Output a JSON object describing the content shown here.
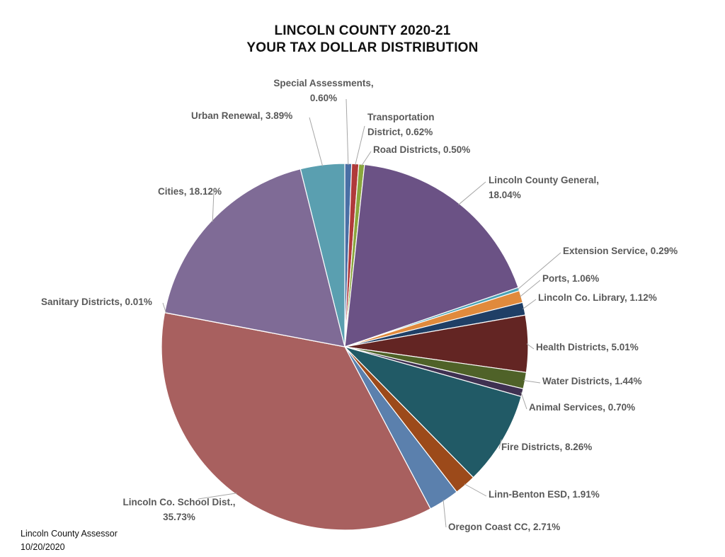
{
  "title_line1": "LINCOLN COUNTY 2020-21",
  "title_line2": "YOUR TAX DOLLAR DISTRIBUTION",
  "footer": {
    "line1": "Lincoln County Assessor",
    "line2": "10/20/2020"
  },
  "chart_data": {
    "type": "pie",
    "title": "LINCOLN COUNTY 2020-21 YOUR TAX DOLLAR DISTRIBUTION",
    "slices": [
      {
        "name": "Special Assessments",
        "value": 0.6,
        "label_lines": [
          "Special Assessments,",
          "0.60%"
        ],
        "color": "#4a6fa5"
      },
      {
        "name": "Transportation District",
        "value": 0.62,
        "label_lines": [
          "Transportation",
          "District, 0.62%"
        ],
        "color": "#b03a3a"
      },
      {
        "name": "Road Districts",
        "value": 0.5,
        "label_lines": [
          "Road Districts, 0.50%"
        ],
        "color": "#8aa63d"
      },
      {
        "name": "Lincoln County General",
        "value": 18.04,
        "label_lines": [
          "Lincoln County General,",
          "18.04%"
        ],
        "color": "#6b5285"
      },
      {
        "name": "Extension Service",
        "value": 0.29,
        "label_lines": [
          "Extension Service, 0.29%"
        ],
        "color": "#4aa3b5"
      },
      {
        "name": "Ports",
        "value": 1.06,
        "label_lines": [
          "Ports, 1.06%"
        ],
        "color": "#e08a3c"
      },
      {
        "name": "Lincoln Co. Library",
        "value": 1.12,
        "label_lines": [
          "Lincoln Co. Library, 1.12%"
        ],
        "color": "#1f3f66"
      },
      {
        "name": "Health Districts",
        "value": 5.01,
        "label_lines": [
          "Health Districts, 5.01%"
        ],
        "color": "#632523"
      },
      {
        "name": "Water Districts",
        "value": 1.44,
        "label_lines": [
          "Water Districts, 1.44%"
        ],
        "color": "#4f6228"
      },
      {
        "name": "Animal Services",
        "value": 0.7,
        "label_lines": [
          "Animal Services, 0.70%"
        ],
        "color": "#3f3151"
      },
      {
        "name": "Fire Districts",
        "value": 8.26,
        "label_lines": [
          "Fire Districts, 8.26%"
        ],
        "color": "#215a66"
      },
      {
        "name": "Linn-Benton ESD",
        "value": 1.91,
        "label_lines": [
          "Linn-Benton ESD, 1.91%"
        ],
        "color": "#9c4a1a"
      },
      {
        "name": "Oregon Coast CC",
        "value": 2.71,
        "label_lines": [
          "Oregon Coast CC, 2.71%"
        ],
        "color": "#5b80ad"
      },
      {
        "name": "Lincoln Co. School Dist.",
        "value": 35.73,
        "label_lines": [
          "Lincoln Co. School Dist.,",
          "35.73%"
        ],
        "color": "#a8605f"
      },
      {
        "name": "Sanitary Districts",
        "value": 0.01,
        "label_lines": [
          "Sanitary Districts, 0.01%"
        ],
        "color": "#90a84a"
      },
      {
        "name": "Cities",
        "value": 18.12,
        "label_lines": [
          "Cities, 18.12%"
        ],
        "color": "#7f6b96"
      },
      {
        "name": "Urban Renewal",
        "value": 3.89,
        "label_lines": [
          "Urban Renewal, 3.89%"
        ],
        "color": "#5a9fb0"
      }
    ]
  }
}
